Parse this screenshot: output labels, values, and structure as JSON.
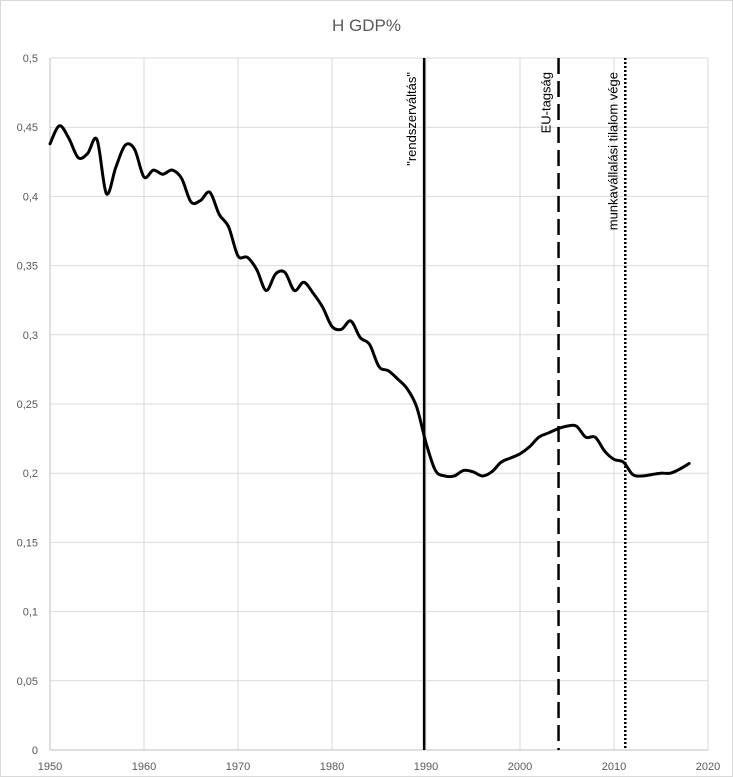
{
  "chart_data": {
    "type": "line",
    "title": "H GDP%",
    "xlabel": "",
    "ylabel": "",
    "xlim": [
      1950,
      2020
    ],
    "ylim": [
      0,
      0.5
    ],
    "x_ticks": [
      1950,
      1960,
      1970,
      1980,
      1990,
      2000,
      2010,
      2020
    ],
    "x_tick_labels": [
      "1950",
      "1960",
      "1970",
      "1980",
      "1990",
      "2000",
      "2010",
      "2020"
    ],
    "y_ticks": [
      0,
      0.05,
      0.1,
      0.15,
      0.2,
      0.25,
      0.3,
      0.35,
      0.4,
      0.45,
      0.5
    ],
    "y_tick_labels": [
      "0",
      "0,05",
      "0,1",
      "0,15",
      "0,2",
      "0,25",
      "0,3",
      "0,35",
      "0,4",
      "0,45",
      "0,5"
    ],
    "grid": true,
    "legend": "none",
    "line_color": "#000000",
    "series": [
      {
        "x": [
          1950,
          1951,
          1952,
          1953,
          1954,
          1955,
          1956,
          1957,
          1958,
          1959,
          1960,
          1961,
          1962,
          1963,
          1964,
          1965,
          1966,
          1967,
          1968,
          1969,
          1970,
          1971,
          1972,
          1973,
          1974,
          1975,
          1976,
          1977,
          1978,
          1979,
          1980,
          1981,
          1982,
          1983,
          1984,
          1985,
          1986,
          1987,
          1988,
          1989,
          1990,
          1991,
          1992,
          1993,
          1994,
          1995,
          1996,
          1997,
          1998,
          1999,
          2000,
          2001,
          2002,
          2003,
          2004,
          2005,
          2006,
          2007,
          2008,
          2009,
          2010,
          2011,
          2012,
          2013,
          2014,
          2015,
          2016,
          2017,
          2018
        ],
        "y": [
          0.438,
          0.451,
          0.442,
          0.428,
          0.431,
          0.441,
          0.402,
          0.421,
          0.437,
          0.434,
          0.414,
          0.419,
          0.416,
          0.419,
          0.413,
          0.396,
          0.397,
          0.403,
          0.387,
          0.378,
          0.357,
          0.356,
          0.347,
          0.332,
          0.344,
          0.345,
          0.332,
          0.338,
          0.33,
          0.32,
          0.306,
          0.304,
          0.31,
          0.298,
          0.293,
          0.277,
          0.274,
          0.268,
          0.261,
          0.248,
          0.222,
          0.202,
          0.198,
          0.198,
          0.202,
          0.201,
          0.198,
          0.201,
          0.208,
          0.211,
          0.214,
          0.219,
          0.226,
          0.229,
          0.232,
          0.234,
          0.234,
          0.226,
          0.226,
          0.216,
          0.21,
          0.208,
          0.199,
          0.198,
          0.199,
          0.2,
          0.2,
          0.203,
          0.207
        ]
      }
    ],
    "markers": [
      {
        "x": 1989.8,
        "label": "\"rendszerváltás\"",
        "style": "solid"
      },
      {
        "x": 2004.1,
        "label": "EU-tagság",
        "style": "dashed"
      },
      {
        "x": 2011.2,
        "label": "munkavállalási tilalom vége",
        "style": "dotted"
      }
    ]
  }
}
